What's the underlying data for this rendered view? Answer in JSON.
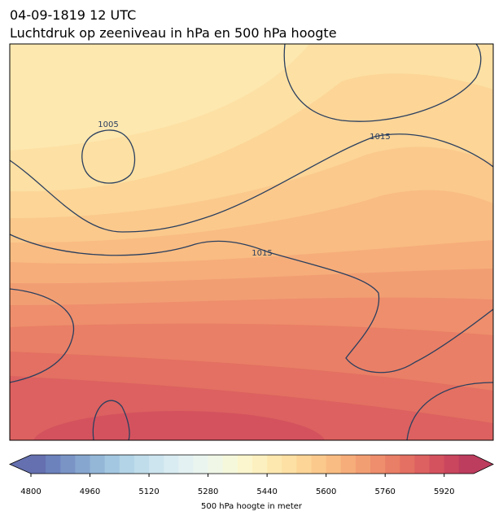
{
  "header": {
    "title": "04-09-1819 12 UTC",
    "subtitle": "Luchtdruk op zeeniveau in hPa en 500 hPa hoogte"
  },
  "map": {
    "contour_labels": [
      "1005",
      "1015",
      "1015"
    ]
  },
  "colorbar": {
    "label": "500 hPa hoogte in meter",
    "range": [
      4800,
      6000
    ],
    "ticks": [
      4800,
      4960,
      5120,
      5280,
      5440,
      5600,
      5760,
      5920
    ],
    "colors": [
      "#6570b0",
      "#6c82bd",
      "#7a94c6",
      "#87a6cf",
      "#94b7d8",
      "#a3c7e0",
      "#b2d4e6",
      "#c0ddeb",
      "#cde5ef",
      "#d9ecf2",
      "#e3f1f2",
      "#ebf5ef",
      "#f1f7e6",
      "#f6f8dc",
      "#fbf6cd",
      "#fdf0c0",
      "#fde8b0",
      "#fde0a3",
      "#fcd597",
      "#fbc98c",
      "#f9bc82",
      "#f6ad7a",
      "#f29e73",
      "#ee8e6c",
      "#e97f66",
      "#e37062",
      "#dc6160",
      "#d4525e",
      "#c9465e",
      "#bd3d5e"
    ]
  }
}
